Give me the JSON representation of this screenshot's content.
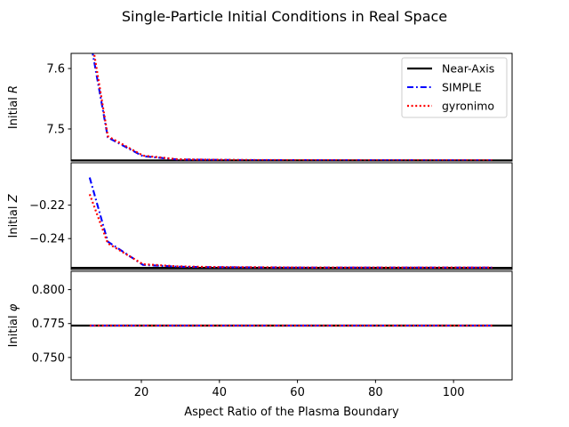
{
  "chart_data": {
    "type": "line",
    "title": "Single-Particle Initial Conditions in Real Space",
    "xlabel": "Aspect Ratio of the Plasma Boundary",
    "xlim": [
      2,
      115
    ],
    "xticks": [
      20,
      40,
      60,
      80,
      100
    ],
    "x": [
      6.75,
      11.4,
      20.4,
      29.3,
      38.3,
      47.2,
      56.2,
      65.1,
      74.1,
      83.0,
      92.0,
      100.9,
      109.9
    ],
    "legend": {
      "position": "top-right",
      "entries": [
        "Near-Axis",
        "SIMPLE",
        "gyronimo"
      ]
    },
    "series_styles": [
      {
        "name": "Near-Axis",
        "color": "#000000",
        "style": "solid"
      },
      {
        "name": "SIMPLE",
        "color": "#0000ff",
        "style": "dashdot"
      },
      {
        "name": "gyronimo",
        "color": "#ff0000",
        "style": "dotted"
      }
    ],
    "panels": [
      {
        "ylabel": "Initial R",
        "ylabel_main": "Initial ",
        "ylabel_symbol": "R",
        "ylim": [
          7.447,
          7.625
        ],
        "yticks": [
          7.5,
          7.6
        ],
        "ytick_labels": [
          "7.5",
          "7.6"
        ],
        "series": [
          {
            "name": "Near-Axis",
            "constant": 7.448
          },
          {
            "name": "SIMPLE",
            "values": [
              7.653,
              7.486,
              7.455,
              7.4495,
              7.449,
              7.4485,
              7.4484,
              7.4483,
              7.4482,
              7.4482,
              7.4481,
              7.4481,
              7.4481
            ]
          },
          {
            "name": "gyronimo",
            "values": [
              7.669,
              7.488,
              7.456,
              7.4498,
              7.4491,
              7.4486,
              7.4484,
              7.4483,
              7.4482,
              7.4482,
              7.4481,
              7.4481,
              7.4481
            ]
          }
        ]
      },
      {
        "ylabel": "Initial Z",
        "ylabel_main": "Initial ",
        "ylabel_symbol": "Z",
        "ylim": [
          -0.2585,
          -0.1947
        ],
        "yticks": [
          -0.24,
          -0.22
        ],
        "ytick_labels": [
          "−0.24",
          "−0.22"
        ],
        "series": [
          {
            "name": "Near-Axis",
            "constant": -0.2575
          },
          {
            "name": "SIMPLE",
            "values": [
              -0.2035,
              -0.2418,
              -0.2557,
              -0.2568,
              -0.2571,
              -0.2572,
              -0.2573,
              -0.2573,
              -0.2573,
              -0.2573,
              -0.2573,
              -0.2573,
              -0.2573
            ]
          },
          {
            "name": "gyronimo",
            "values": [
              -0.2135,
              -0.2428,
              -0.2553,
              -0.2566,
              -0.257,
              -0.2571,
              -0.2572,
              -0.2573,
              -0.2573,
              -0.2573,
              -0.2573,
              -0.2573,
              -0.2573
            ]
          }
        ]
      },
      {
        "ylabel": "Initial φ",
        "ylabel_main": "Initial ",
        "ylabel_symbol": "φ",
        "ylim": [
          0.7335,
          0.8135
        ],
        "yticks": [
          0.75,
          0.775,
          0.8
        ],
        "ytick_labels": [
          "0.750",
          "0.775",
          "0.800"
        ],
        "series": [
          {
            "name": "Near-Axis",
            "constant": 0.7735
          },
          {
            "name": "SIMPLE",
            "values": [
              0.7735,
              0.7735,
              0.7735,
              0.7735,
              0.7735,
              0.7735,
              0.7735,
              0.7735,
              0.7735,
              0.7735,
              0.7735,
              0.7735,
              0.7735
            ]
          },
          {
            "name": "gyronimo",
            "values": [
              0.7735,
              0.7735,
              0.7735,
              0.7735,
              0.7735,
              0.7735,
              0.7735,
              0.7735,
              0.7735,
              0.7735,
              0.7735,
              0.7735,
              0.7735
            ]
          }
        ]
      }
    ]
  }
}
